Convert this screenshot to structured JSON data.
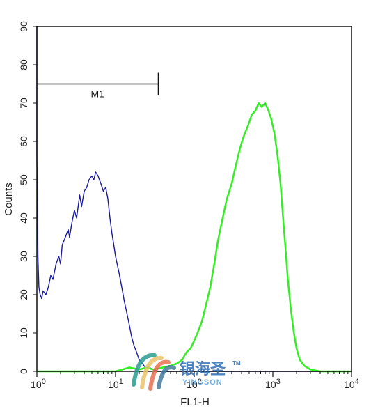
{
  "chart_data": {
    "type": "line",
    "xlabel": "FL1-H",
    "ylabel": "Counts",
    "x_scale": "log",
    "xlim": [
      1,
      10000
    ],
    "ylim": [
      0,
      90
    ],
    "x_ticks": [
      {
        "value": 1,
        "base": "10",
        "exp": "0"
      },
      {
        "value": 10,
        "base": "10",
        "exp": "1"
      },
      {
        "value": 100,
        "base": "10",
        "exp": "2"
      },
      {
        "value": 1000,
        "base": "10",
        "exp": "3"
      },
      {
        "value": 10000,
        "base": "10",
        "exp": "4"
      }
    ],
    "y_ticks": [
      "0",
      "10",
      "20",
      "30",
      "40",
      "50",
      "60",
      "70",
      "80",
      "90"
    ],
    "grid": false,
    "marker": {
      "label": "M1",
      "x_start": 1,
      "x_end": 35,
      "y": 75
    },
    "series": [
      {
        "color": "#1a1aa0",
        "points": [
          [
            1.0,
            90
          ],
          [
            1.0,
            56
          ],
          [
            1.03,
            30
          ],
          [
            1.06,
            22
          ],
          [
            1.1,
            20
          ],
          [
            1.15,
            19
          ],
          [
            1.2,
            21
          ],
          [
            1.3,
            20
          ],
          [
            1.4,
            22
          ],
          [
            1.5,
            25
          ],
          [
            1.6,
            24
          ],
          [
            1.75,
            28
          ],
          [
            1.9,
            30
          ],
          [
            2.0,
            28
          ],
          [
            2.1,
            33
          ],
          [
            2.3,
            35
          ],
          [
            2.5,
            37
          ],
          [
            2.6,
            35
          ],
          [
            2.8,
            39
          ],
          [
            3.0,
            42
          ],
          [
            3.2,
            40
          ],
          [
            3.5,
            46
          ],
          [
            3.7,
            43
          ],
          [
            4.0,
            47
          ],
          [
            4.3,
            48
          ],
          [
            4.6,
            50
          ],
          [
            5.0,
            51
          ],
          [
            5.3,
            50
          ],
          [
            5.6,
            52
          ],
          [
            6.0,
            51
          ],
          [
            6.5,
            49
          ],
          [
            7.0,
            47
          ],
          [
            7.5,
            48
          ],
          [
            8.0,
            45
          ],
          [
            8.5,
            40
          ],
          [
            9.0,
            36
          ],
          [
            9.5,
            33
          ],
          [
            10.0,
            30
          ],
          [
            11.0,
            26
          ],
          [
            12.0,
            22
          ],
          [
            13.0,
            18
          ],
          [
            14.0,
            15
          ],
          [
            15.0,
            12
          ],
          [
            16.0,
            9
          ],
          [
            17.0,
            7
          ],
          [
            18.5,
            5
          ],
          [
            20.0,
            3
          ],
          [
            22.0,
            2
          ],
          [
            24.0,
            1
          ],
          [
            27.0,
            1
          ],
          [
            30.0,
            0.5
          ],
          [
            35.0,
            0
          ],
          [
            100.0,
            0
          ],
          [
            10000.0,
            0
          ]
        ]
      },
      {
        "color": "#33ee22",
        "points": [
          [
            1.0,
            0
          ],
          [
            10.0,
            0
          ],
          [
            15.0,
            1
          ],
          [
            20.0,
            0.5
          ],
          [
            25.0,
            1
          ],
          [
            30.0,
            0.5
          ],
          [
            40.0,
            1
          ],
          [
            50.0,
            1.5
          ],
          [
            60.0,
            2
          ],
          [
            70.0,
            3
          ],
          [
            80.0,
            5
          ],
          [
            90.0,
            6
          ],
          [
            100.0,
            8
          ],
          [
            110.0,
            10
          ],
          [
            125.0,
            13
          ],
          [
            140.0,
            17
          ],
          [
            160.0,
            22
          ],
          [
            180.0,
            28
          ],
          [
            200.0,
            34
          ],
          [
            230.0,
            40
          ],
          [
            260.0,
            45
          ],
          [
            300.0,
            49
          ],
          [
            340.0,
            54
          ],
          [
            380.0,
            58
          ],
          [
            420.0,
            61
          ],
          [
            480.0,
            64
          ],
          [
            540.0,
            67
          ],
          [
            600.0,
            68
          ],
          [
            660.0,
            70
          ],
          [
            720.0,
            69
          ],
          [
            800.0,
            70
          ],
          [
            880.0,
            68
          ],
          [
            950.0,
            66
          ],
          [
            1050.0,
            62
          ],
          [
            1150.0,
            56
          ],
          [
            1250.0,
            49
          ],
          [
            1350.0,
            40
          ],
          [
            1450.0,
            32
          ],
          [
            1550.0,
            24
          ],
          [
            1700.0,
            16
          ],
          [
            1850.0,
            10
          ],
          [
            2000.0,
            6
          ],
          [
            2200.0,
            3
          ],
          [
            2500.0,
            1.5
          ],
          [
            3000.0,
            0.5
          ],
          [
            4000.0,
            0
          ],
          [
            10000.0,
            0
          ]
        ]
      }
    ]
  },
  "watermark": {
    "brand": "银海圣",
    "latin": "YINGSON",
    "tm": "TM"
  }
}
